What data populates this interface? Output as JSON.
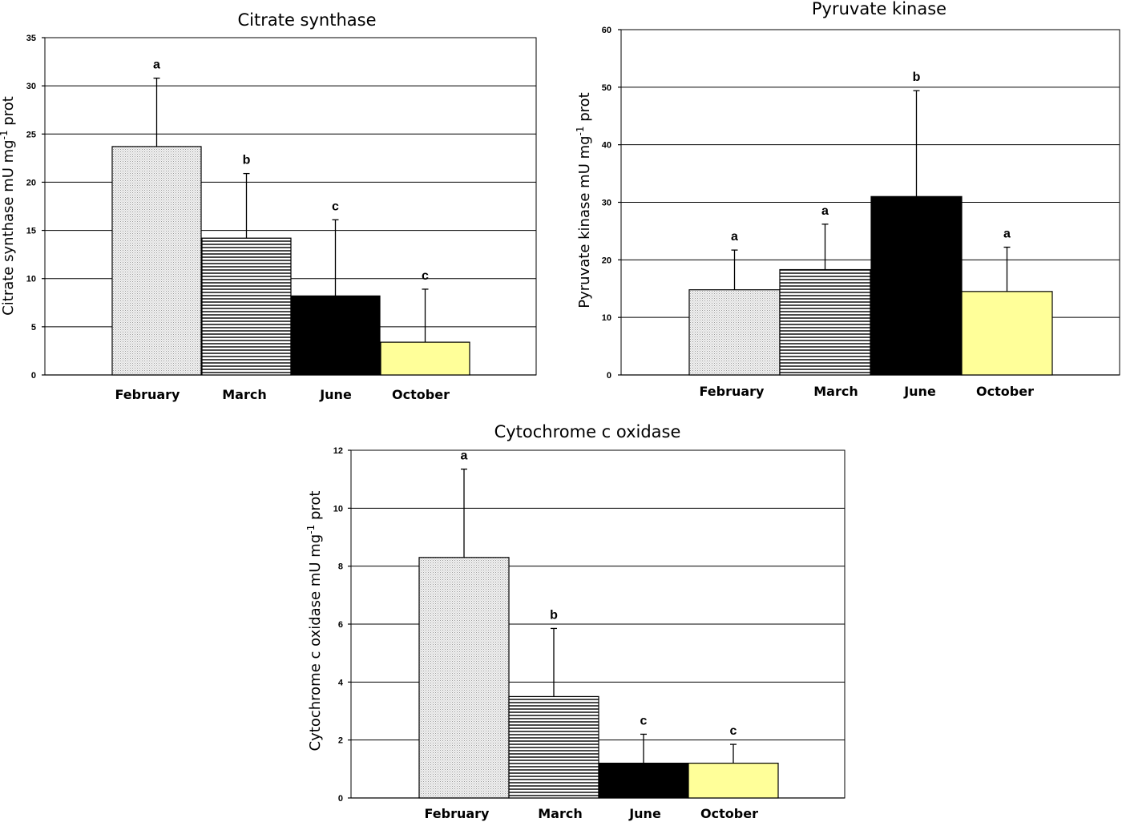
{
  "chart_data": [
    {
      "type": "bar",
      "title": "Citrate synthase",
      "ylabel_main": "Citrate synthase mU mg",
      "ylabel_sup": "-1",
      "ylabel_tail": " prot",
      "categories": [
        "February",
        "March",
        "June",
        "October"
      ],
      "values": [
        23.7,
        14.2,
        8.2,
        3.4
      ],
      "errors": [
        7.1,
        6.7,
        7.9,
        5.5
      ],
      "letters": [
        "a",
        "b",
        "c",
        "c"
      ],
      "ylim": [
        0,
        35
      ],
      "yticks": [
        0,
        5,
        10,
        15,
        20,
        25,
        30,
        35
      ],
      "grid": true
    },
    {
      "type": "bar",
      "title": "Pyruvate  kinase",
      "ylabel_main": "Pyruvate kinase mU mg",
      "ylabel_sup": "-1",
      "ylabel_tail": " prot",
      "categories": [
        "February",
        "March",
        "June",
        "October"
      ],
      "values": [
        14.8,
        18.3,
        31.0,
        14.5
      ],
      "errors": [
        6.9,
        7.9,
        18.4,
        7.7
      ],
      "letters": [
        "a",
        "a",
        "b",
        "a"
      ],
      "ylim": [
        0,
        60
      ],
      "yticks": [
        0,
        10,
        20,
        30,
        40,
        50,
        60
      ],
      "grid": true
    },
    {
      "type": "bar",
      "title": "Cytochrome  c oxidase",
      "ylabel_main": "Cytochrome c oxidase mU mg",
      "ylabel_sup": "-1",
      "ylabel_tail": " prot",
      "categories": [
        "February",
        "March",
        "June",
        "October"
      ],
      "values": [
        8.3,
        3.5,
        1.2,
        1.2
      ],
      "errors": [
        3.05,
        2.35,
        1.0,
        0.65
      ],
      "letters": [
        "a",
        "b",
        "c",
        "c"
      ],
      "ylim": [
        0,
        12
      ],
      "yticks": [
        0,
        2,
        4,
        6,
        8,
        10,
        12
      ],
      "grid": true
    }
  ],
  "colors": {
    "february": "dotted-light-grey",
    "march": "horizontal-stripes-grey",
    "june": "#000000",
    "october": "#ffff99"
  }
}
